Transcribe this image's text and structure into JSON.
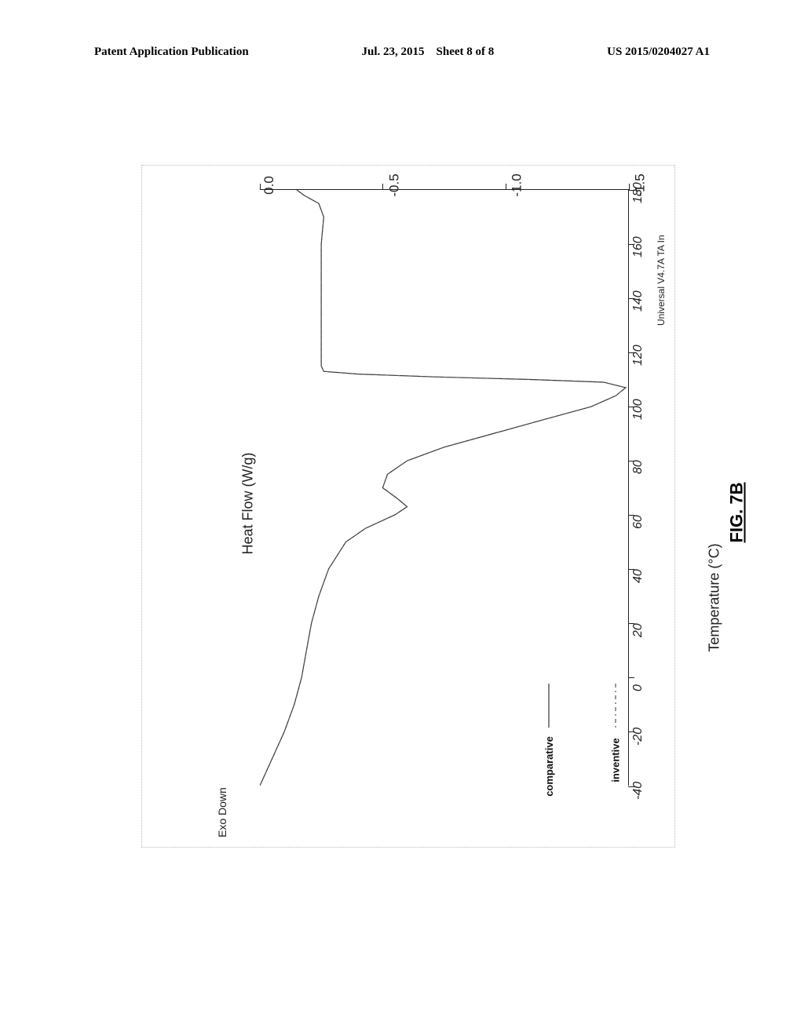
{
  "header": {
    "left": "Patent Application Publication",
    "date": "Jul. 23, 2015",
    "sheet": "Sheet 8 of 8",
    "pubno": "US 2015/0204027 A1"
  },
  "figure": {
    "caption": "FIG. 7B",
    "software_credit": "Universal V4.7A TA In",
    "exo_label": "Exo Down",
    "chart": {
      "type": "line",
      "xlabel": "Heat Flow (W/g)",
      "ylabel": "Temperature (°C)",
      "xlim": [
        -1.5,
        0.0
      ],
      "ylim": [
        -40,
        180
      ],
      "xticks": [
        -1.5,
        -1.0,
        -0.5,
        0.0
      ],
      "yticks": [
        -40,
        -20,
        0,
        20,
        40,
        60,
        80,
        100,
        120,
        140,
        160,
        180
      ],
      "background_color": "#ffffff",
      "axis_color": "#222222",
      "series": [
        {
          "name": "comparative",
          "stroke": "#333333",
          "width": 1.2,
          "dash": "",
          "points": [
            [
              -40,
              0.0
            ],
            [
              -30,
              -0.05
            ],
            [
              -20,
              -0.1
            ],
            [
              -10,
              -0.14
            ],
            [
              0,
              -0.17
            ],
            [
              10,
              -0.19
            ],
            [
              20,
              -0.21
            ],
            [
              30,
              -0.24
            ],
            [
              40,
              -0.28
            ],
            [
              50,
              -0.35
            ],
            [
              55,
              -0.43
            ],
            [
              60,
              -0.55
            ],
            [
              63,
              -0.6
            ],
            [
              66,
              -0.56
            ],
            [
              70,
              -0.5
            ],
            [
              75,
              -0.52
            ],
            [
              80,
              -0.6
            ],
            [
              85,
              -0.75
            ],
            [
              90,
              -0.95
            ],
            [
              95,
              -1.15
            ],
            [
              100,
              -1.35
            ],
            [
              104,
              -1.45
            ],
            [
              107,
              -1.49
            ],
            [
              109,
              -1.4
            ],
            [
              110,
              -1.1
            ],
            [
              111,
              -0.7
            ],
            [
              112,
              -0.4
            ],
            [
              113,
              -0.26
            ],
            [
              115,
              -0.25
            ],
            [
              120,
              -0.25
            ],
            [
              130,
              -0.25
            ],
            [
              140,
              -0.25
            ],
            [
              150,
              -0.25
            ],
            [
              160,
              -0.25
            ],
            [
              170,
              -0.26
            ],
            [
              175,
              -0.24
            ],
            [
              178,
              -0.18
            ],
            [
              180,
              -0.15
            ]
          ]
        },
        {
          "name": "inventive",
          "stroke": "#555555",
          "width": 1.0,
          "dash": "5 4 2 4",
          "points": [
            [
              -40,
              0.0
            ],
            [
              -30,
              -0.05
            ],
            [
              -20,
              -0.1
            ],
            [
              -10,
              -0.14
            ],
            [
              0,
              -0.17
            ],
            [
              10,
              -0.19
            ],
            [
              20,
              -0.21
            ],
            [
              30,
              -0.24
            ],
            [
              40,
              -0.28
            ],
            [
              50,
              -0.35
            ],
            [
              55,
              -0.43
            ],
            [
              60,
              -0.55
            ],
            [
              63,
              -0.6
            ],
            [
              66,
              -0.56
            ],
            [
              70,
              -0.5
            ],
            [
              75,
              -0.52
            ],
            [
              80,
              -0.6
            ],
            [
              85,
              -0.75
            ],
            [
              90,
              -0.95
            ],
            [
              95,
              -1.15
            ],
            [
              100,
              -1.35
            ],
            [
              104,
              -1.45
            ],
            [
              107,
              -1.49
            ],
            [
              109,
              -1.4
            ],
            [
              110,
              -1.1
            ],
            [
              111,
              -0.7
            ],
            [
              112,
              -0.4
            ],
            [
              113,
              -0.26
            ],
            [
              115,
              -0.25
            ],
            [
              120,
              -0.25
            ],
            [
              130,
              -0.25
            ],
            [
              140,
              -0.25
            ],
            [
              150,
              -0.25
            ],
            [
              160,
              -0.25
            ],
            [
              170,
              -0.26
            ],
            [
              175,
              -0.24
            ],
            [
              178,
              -0.18
            ],
            [
              180,
              -0.15
            ]
          ]
        }
      ],
      "legend": {
        "entries": [
          {
            "label": "comparative",
            "dash": ""
          },
          {
            "label": "inventive",
            "dash": "5 4 2 4"
          }
        ]
      }
    }
  }
}
